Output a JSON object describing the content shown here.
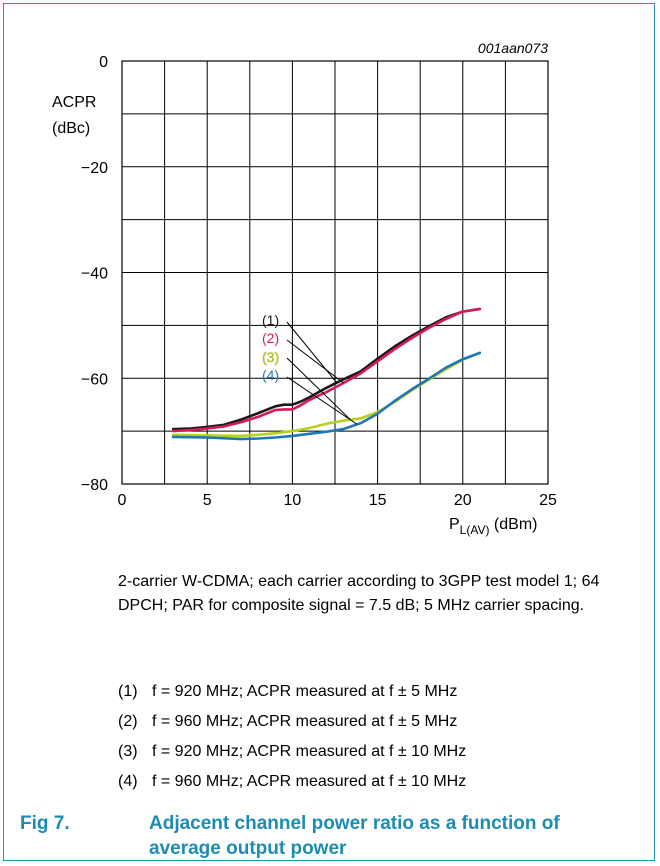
{
  "figure_id": "001aan073",
  "chart_data": {
    "type": "line",
    "ylabel_line1": "ACPR",
    "ylabel_line2": "(dBc)",
    "xlabel_main": "P",
    "xlabel_sub": "L(AV)",
    "xlabel_unit": " (dBm)",
    "xlim": [
      0,
      25
    ],
    "ylim": [
      -80,
      0
    ],
    "x_ticks": [
      0,
      5,
      10,
      15,
      20,
      25
    ],
    "x_tick_labels": [
      "0",
      "5",
      "10",
      "15",
      "20",
      "25"
    ],
    "y_ticks": [
      0,
      -20,
      -40,
      -60,
      -80
    ],
    "y_tick_labels": [
      "0",
      "−20",
      "−40",
      "−60",
      "−80"
    ],
    "x_grid_step": 2.5,
    "y_grid_step": 10,
    "grid": true,
    "series": [
      {
        "name": "(1)",
        "color": "#1a1a1a",
        "x": [
          3,
          4,
          5,
          6,
          7,
          8,
          9,
          9.5,
          10,
          10.5,
          11,
          12,
          13,
          14,
          15,
          16,
          17,
          18,
          19,
          20,
          21
        ],
        "y": [
          -69.6,
          -69.5,
          -69.2,
          -68.8,
          -67.8,
          -66.6,
          -65.3,
          -65.0,
          -65.0,
          -64.4,
          -63.6,
          -61.8,
          -60.2,
          -58.7,
          -56.3,
          -54.0,
          -52.0,
          -50.2,
          -48.5,
          -47.4,
          -46.9
        ]
      },
      {
        "name": "(2)",
        "color": "#d6195e",
        "x": [
          3,
          4,
          5,
          6,
          7,
          8,
          9,
          9.5,
          10,
          10.5,
          11,
          12,
          13,
          14,
          15,
          16,
          17,
          18,
          19,
          20,
          21
        ],
        "y": [
          -70.0,
          -69.8,
          -69.5,
          -69.1,
          -68.3,
          -67.3,
          -66.0,
          -65.9,
          -65.9,
          -65.1,
          -64.1,
          -62.6,
          -60.9,
          -59.1,
          -56.8,
          -54.5,
          -52.4,
          -50.5,
          -48.8,
          -47.4,
          -46.9
        ]
      },
      {
        "name": "(3)",
        "color": "#b7d11c",
        "x": [
          3,
          5,
          7,
          8,
          9,
          10,
          11,
          12,
          13,
          14,
          15,
          16,
          17,
          18,
          19,
          20,
          21
        ],
        "y": [
          -70.7,
          -70.8,
          -70.9,
          -70.7,
          -70.4,
          -70.0,
          -69.4,
          -68.6,
          -68.0,
          -67.6,
          -66.4,
          -64.5,
          -62.3,
          -60.3,
          -58.3,
          -56.5,
          -55.2
        ]
      },
      {
        "name": "(4)",
        "color": "#1f78b4",
        "x": [
          3,
          5,
          7,
          8,
          9,
          10,
          11,
          12,
          13,
          14,
          15,
          16,
          17,
          18,
          19,
          20,
          21
        ],
        "y": [
          -71.1,
          -71.2,
          -71.5,
          -71.4,
          -71.2,
          -70.9,
          -70.5,
          -70.1,
          -69.6,
          -68.5,
          -66.7,
          -64.3,
          -62.1,
          -60.1,
          -58.0,
          -56.4,
          -55.2
        ]
      }
    ],
    "callout_labels": [
      "(1)",
      "(2)",
      "(3)",
      "(4)"
    ]
  },
  "description": "2-carrier W-CDMA; each carrier according to 3GPP test model 1; 64 DPCH; PAR for composite signal = 7.5 dB; 5 MHz carrier spacing.",
  "notes": [
    {
      "num": "(1)",
      "text": "f = 920 MHz; ACPR measured at f ± 5 MHz"
    },
    {
      "num": "(2)",
      "text": "f = 960 MHz; ACPR measured at f ± 5 MHz"
    },
    {
      "num": "(3)",
      "text": "f = 920 MHz; ACPR measured at f ± 10 MHz"
    },
    {
      "num": "(4)",
      "text": "f = 960 MHz; ACPR measured at f ± 10 MHz"
    }
  ],
  "caption": {
    "label": "Fig 7.",
    "text": "Adjacent channel power ratio as a function of average output power"
  }
}
